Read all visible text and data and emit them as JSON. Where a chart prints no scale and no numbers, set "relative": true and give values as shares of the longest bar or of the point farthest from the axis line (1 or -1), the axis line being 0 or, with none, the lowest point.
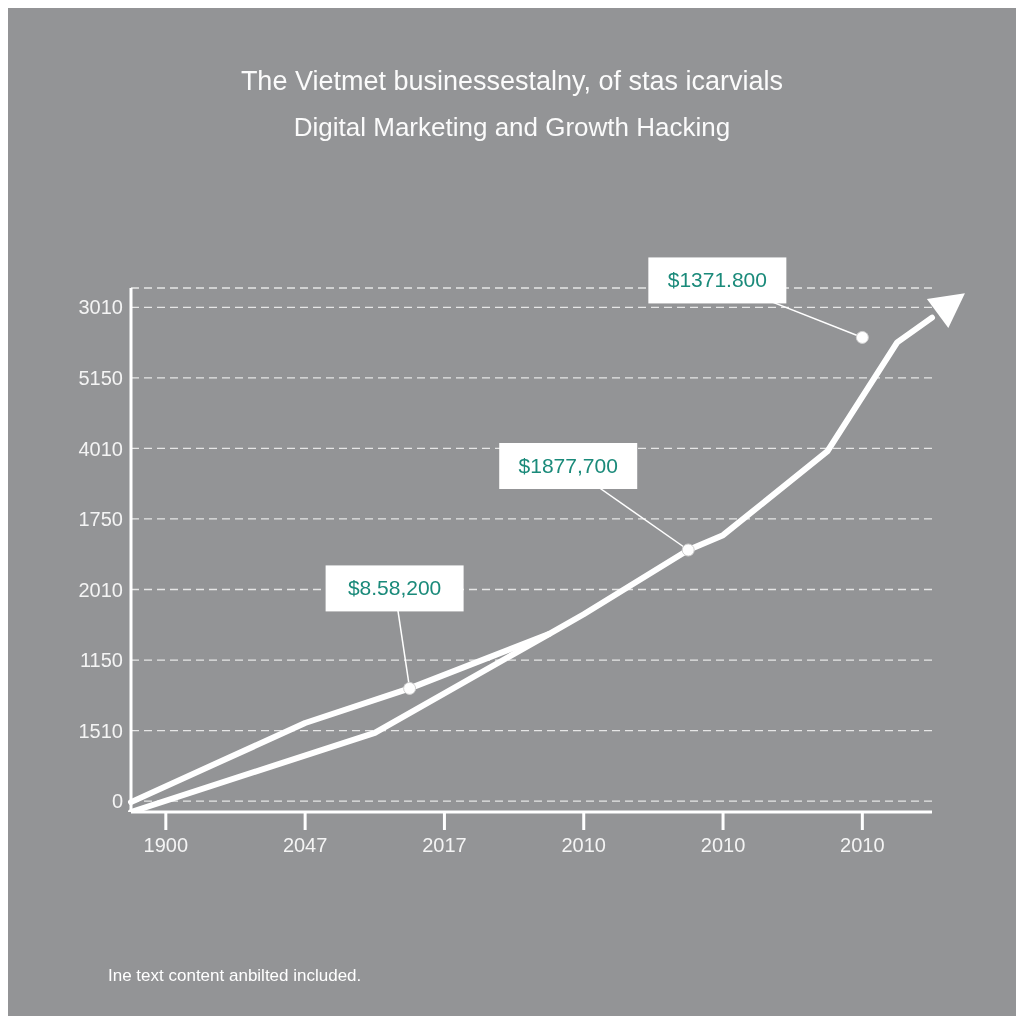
{
  "chart_data": {
    "type": "line",
    "title": "The Vietmet businessestalny, of stas icarvials",
    "subtitle": "Digital Marketing and Growth Hacking",
    "categories": [
      null,
      "1900",
      null,
      null,
      null,
      "2047",
      null,
      null,
      null,
      "2017",
      null,
      null,
      null,
      "2010",
      null,
      null,
      null,
      "2010",
      null,
      null,
      null,
      "2010",
      null,
      null
    ],
    "y_categories": [
      "3010",
      "5150",
      "4010",
      "1750",
      "2010",
      "1150",
      "1510",
      "0"
    ],
    "relative": true,
    "series": [
      {
        "color": "#ffffff",
        "values": [
          0.02,
          null,
          null,
          null,
          null,
          0.18,
          null,
          null,
          0.25,
          null,
          null,
          null,
          0.36,
          null,
          null,
          null,
          null,
          null,
          null,
          null,
          null,
          null,
          null,
          null
        ]
      },
      {
        "color": "#ffffff",
        "values": [
          0,
          null,
          null,
          null,
          null,
          null,
          null,
          0.16,
          null,
          null,
          null,
          null,
          0.36,
          0.4,
          null,
          null,
          0.53,
          0.56,
          null,
          null,
          0.73,
          null,
          0.95,
          1
        ]
      }
    ],
    "annotations": [
      "$8.58,200",
      "$1877,700",
      "$1371.800",
      "Ine text content anbilted included."
    ],
    "grid": "y",
    "marker": "none",
    "line_style": "solid"
  }
}
